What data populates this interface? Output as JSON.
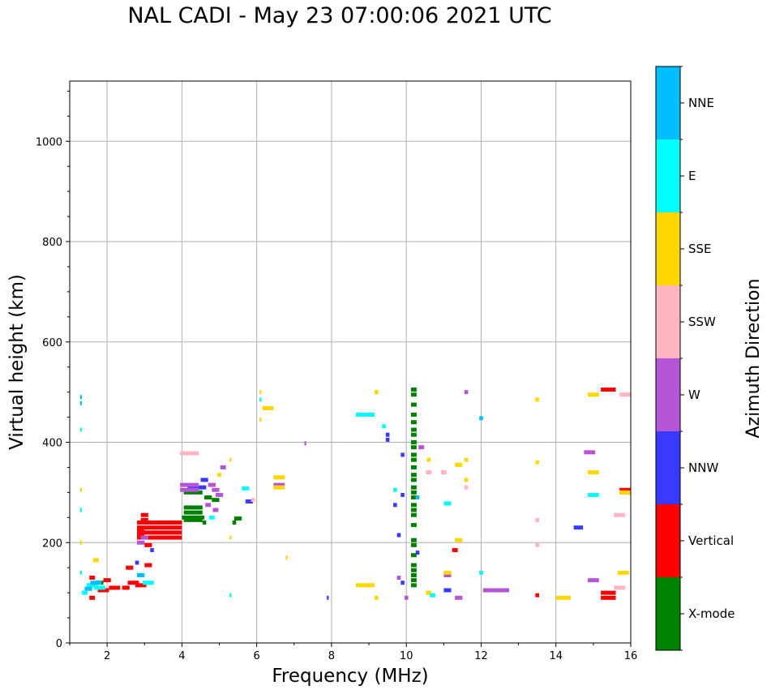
{
  "chart_data": {
    "type": "scatter",
    "title": "NAL CADI - May 23 07:00:06 2021 UTC",
    "xlabel": "Frequency (MHz)",
    "ylabel": "Virtual height (km)",
    "xlim": [
      1,
      16
    ],
    "ylim": [
      0,
      1120
    ],
    "xticks": [
      2,
      4,
      6,
      8,
      10,
      12,
      14,
      16
    ],
    "yticks": [
      0,
      200,
      400,
      600,
      800,
      1000
    ],
    "grid": true,
    "colorbar": {
      "label": "Azimuth Direction",
      "categories": [
        "X-mode",
        "Vertical",
        "NNW",
        "W",
        "SSW",
        "SSE",
        "E",
        "NNE"
      ],
      "colors": [
        "#008000",
        "#ff0000",
        "#3a3aff",
        "#b455d5",
        "#ffb6c1",
        "#ffd700",
        "#00ffff",
        "#00bfff"
      ]
    },
    "series": [
      {
        "name": "X-mode",
        "points": [
          [
            4.3,
            300,
            0.5
          ],
          [
            4.3,
            270,
            0.5
          ],
          [
            4.3,
            260,
            0.5
          ],
          [
            4.3,
            250,
            0.6
          ],
          [
            4.3,
            245,
            0.5
          ],
          [
            4.7,
            290,
            0.2
          ],
          [
            4.9,
            285,
            0.2
          ],
          [
            5.5,
            248,
            0.2
          ],
          [
            5.4,
            240,
            0.1
          ],
          [
            4.6,
            240,
            0.1
          ],
          [
            10.2,
            505,
            0.15
          ],
          [
            10.2,
            495,
            0.15
          ],
          [
            10.2,
            475,
            0.15
          ],
          [
            10.2,
            455,
            0.15
          ],
          [
            10.2,
            440,
            0.15
          ],
          [
            10.2,
            425,
            0.15
          ],
          [
            10.2,
            415,
            0.15
          ],
          [
            10.2,
            400,
            0.15
          ],
          [
            10.2,
            390,
            0.15
          ],
          [
            10.2,
            375,
            0.15
          ],
          [
            10.2,
            365,
            0.15
          ],
          [
            10.2,
            350,
            0.15
          ],
          [
            10.2,
            335,
            0.15
          ],
          [
            10.2,
            325,
            0.15
          ],
          [
            10.2,
            310,
            0.15
          ],
          [
            10.2,
            300,
            0.15
          ],
          [
            10.2,
            290,
            0.15
          ],
          [
            10.2,
            275,
            0.15
          ],
          [
            10.2,
            265,
            0.15
          ],
          [
            10.2,
            255,
            0.15
          ],
          [
            10.2,
            235,
            0.15
          ],
          [
            10.2,
            205,
            0.15
          ],
          [
            10.2,
            195,
            0.15
          ],
          [
            10.2,
            175,
            0.15
          ],
          [
            10.2,
            155,
            0.15
          ],
          [
            10.2,
            145,
            0.15
          ],
          [
            10.2,
            135,
            0.15
          ],
          [
            10.2,
            125,
            0.15
          ],
          [
            10.2,
            115,
            0.15
          ],
          [
            1.8,
            120,
            0.2
          ]
        ]
      },
      {
        "name": "Vertical",
        "points": [
          [
            3.4,
            240,
            1.2
          ],
          [
            3.4,
            230,
            1.2
          ],
          [
            3.4,
            220,
            1.2
          ],
          [
            3.4,
            210,
            1.2
          ],
          [
            3.0,
            255,
            0.2
          ],
          [
            3.0,
            245,
            0.2
          ],
          [
            2.9,
            225,
            0.2
          ],
          [
            2.9,
            215,
            0.2
          ],
          [
            3.1,
            195,
            0.2
          ],
          [
            3.1,
            155,
            0.2
          ],
          [
            2.7,
            120,
            0.3
          ],
          [
            2.9,
            115,
            0.3
          ],
          [
            2.5,
            110,
            0.2
          ],
          [
            2.2,
            110,
            0.3
          ],
          [
            2.0,
            125,
            0.2
          ],
          [
            1.6,
            130,
            0.15
          ],
          [
            1.6,
            90,
            0.15
          ],
          [
            1.9,
            105,
            0.3
          ],
          [
            2.6,
            150,
            0.2
          ],
          [
            11.3,
            185,
            0.15
          ],
          [
            13.5,
            95,
            0.1
          ],
          [
            15.4,
            505,
            0.4
          ],
          [
            15.4,
            100,
            0.4
          ],
          [
            15.4,
            90,
            0.4
          ],
          [
            15.9,
            305,
            0.3
          ]
        ]
      },
      {
        "name": "NNW",
        "points": [
          [
            9.5,
            415,
            0.1
          ],
          [
            9.5,
            405,
            0.1
          ],
          [
            9.7,
            275,
            0.1
          ],
          [
            9.9,
            120,
            0.1
          ],
          [
            9.9,
            375,
            0.1
          ],
          [
            9.8,
            215,
            0.1
          ],
          [
            10.3,
            180,
            0.1
          ],
          [
            11.1,
            105,
            0.2
          ],
          [
            14.6,
            230,
            0.25
          ],
          [
            5.8,
            282,
            0.2
          ],
          [
            4.4,
            310,
            0.5
          ],
          [
            7.9,
            90,
            0.05
          ],
          [
            9.9,
            295,
            0.1
          ],
          [
            2.8,
            160,
            0.1
          ],
          [
            3.2,
            185,
            0.1
          ],
          [
            4.6,
            325,
            0.2
          ]
        ]
      },
      {
        "name": "W",
        "points": [
          [
            4.2,
            315,
            0.5
          ],
          [
            4.2,
            305,
            0.5
          ],
          [
            4.8,
            315,
            0.2
          ],
          [
            4.9,
            305,
            0.2
          ],
          [
            5.0,
            295,
            0.2
          ],
          [
            4.7,
            275,
            0.15
          ],
          [
            4.9,
            265,
            0.15
          ],
          [
            5.1,
            350,
            0.15
          ],
          [
            11.6,
            500,
            0.1
          ],
          [
            10.4,
            390,
            0.15
          ],
          [
            11.1,
            135,
            0.2
          ],
          [
            12.4,
            105,
            0.7
          ],
          [
            14.9,
            380,
            0.3
          ],
          [
            15.0,
            125,
            0.3
          ],
          [
            9.8,
            130,
            0.1
          ],
          [
            10.0,
            90,
            0.1
          ],
          [
            11.4,
            90,
            0.2
          ],
          [
            15.9,
            300,
            0.3
          ],
          [
            2.9,
            200,
            0.2
          ],
          [
            3.0,
            210,
            0.2
          ],
          [
            6.6,
            315,
            0.3
          ],
          [
            7.3,
            398,
            0.05
          ]
        ]
      },
      {
        "name": "SSW",
        "points": [
          [
            4.2,
            378,
            0.5
          ],
          [
            5.9,
            285,
            0.1
          ],
          [
            11.0,
            340,
            0.15
          ],
          [
            10.6,
            340,
            0.15
          ],
          [
            15.7,
            255,
            0.3
          ],
          [
            15.7,
            110,
            0.3
          ],
          [
            13.5,
            195,
            0.1
          ],
          [
            13.5,
            245,
            0.1
          ],
          [
            11.6,
            310,
            0.1
          ],
          [
            15.9,
            495,
            0.3
          ]
        ]
      },
      {
        "name": "SSE",
        "points": [
          [
            6.3,
            468,
            0.3
          ],
          [
            6.6,
            330,
            0.3
          ],
          [
            6.6,
            310,
            0.3
          ],
          [
            9.2,
            500,
            0.1
          ],
          [
            8.9,
            115,
            0.5
          ],
          [
            9.2,
            90,
            0.1
          ],
          [
            10.6,
            100,
            0.15
          ],
          [
            11.1,
            140,
            0.2
          ],
          [
            11.4,
            205,
            0.2
          ],
          [
            11.4,
            355,
            0.2
          ],
          [
            11.6,
            365,
            0.1
          ],
          [
            11.6,
            325,
            0.1
          ],
          [
            13.5,
            485,
            0.1
          ],
          [
            13.5,
            360,
            0.1
          ],
          [
            14.2,
            90,
            0.4
          ],
          [
            15.0,
            495,
            0.3
          ],
          [
            15.0,
            340,
            0.3
          ],
          [
            15.8,
            140,
            0.3
          ],
          [
            15.9,
            300,
            0.3
          ],
          [
            6.1,
            500,
            0.05
          ],
          [
            6.1,
            445,
            0.05
          ],
          [
            5.0,
            335,
            0.1
          ],
          [
            1.7,
            165,
            0.15
          ],
          [
            1.3,
            305,
            0.05
          ],
          [
            1.3,
            200,
            0.05
          ],
          [
            5.3,
            210,
            0.05
          ],
          [
            5.3,
            365,
            0.05
          ],
          [
            6.8,
            170,
            0.05
          ],
          [
            10.6,
            365,
            0.1
          ]
        ]
      },
      {
        "name": "E",
        "points": [
          [
            8.9,
            455,
            0.5
          ],
          [
            9.4,
            432,
            0.1
          ],
          [
            9.7,
            305,
            0.1
          ],
          [
            11.1,
            278,
            0.2
          ],
          [
            10.7,
            95,
            0.15
          ],
          [
            15.0,
            295,
            0.3
          ],
          [
            5.7,
            308,
            0.2
          ],
          [
            4.8,
            250,
            0.15
          ],
          [
            3.1,
            120,
            0.3
          ],
          [
            1.6,
            115,
            0.3
          ],
          [
            1.8,
            110,
            0.3
          ],
          [
            1.4,
            100,
            0.15
          ],
          [
            1.3,
            140,
            0.05
          ],
          [
            1.3,
            265,
            0.05
          ],
          [
            1.3,
            425,
            0.05
          ],
          [
            5.3,
            95,
            0.05
          ],
          [
            12.0,
            140,
            0.1
          ],
          [
            6.1,
            485,
            0.05
          ]
        ]
      },
      {
        "name": "NNE",
        "points": [
          [
            1.3,
            490,
            0.05
          ],
          [
            1.3,
            478,
            0.05
          ],
          [
            12.0,
            448,
            0.1
          ],
          [
            2.9,
            135,
            0.2
          ],
          [
            10.3,
            290,
            0.1
          ],
          [
            1.7,
            120,
            0.3
          ],
          [
            1.5,
            108,
            0.2
          ]
        ]
      }
    ]
  }
}
